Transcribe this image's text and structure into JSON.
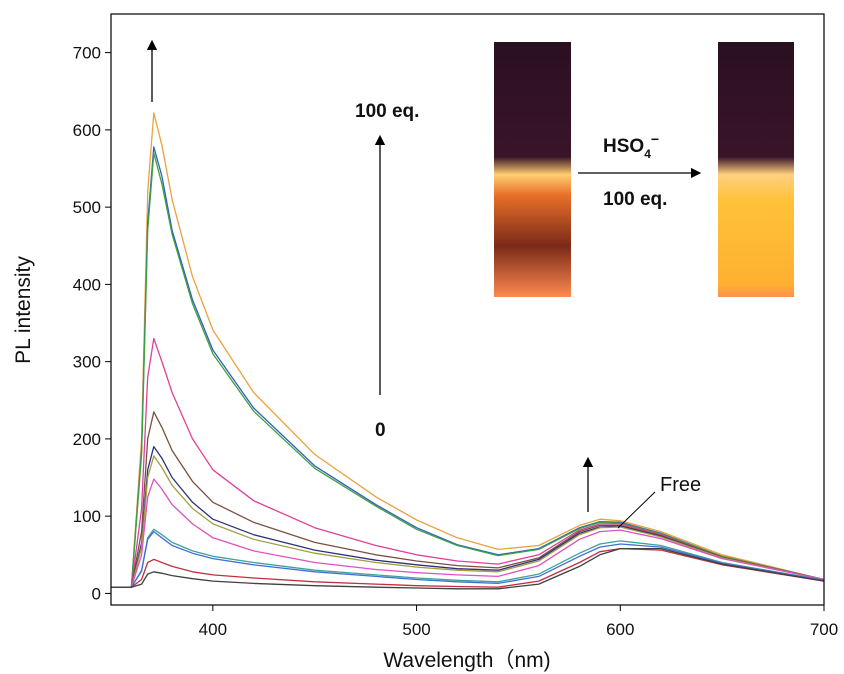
{
  "chart_data": {
    "type": "line",
    "xlabel": "Wavelength（nm)",
    "ylabel": "PL intensity",
    "xlim": [
      350,
      700
    ],
    "ylim": [
      -15,
      750
    ],
    "xticks": [
      400,
      500,
      600,
      700
    ],
    "yticks": [
      0,
      100,
      200,
      300,
      400,
      500,
      600,
      700
    ],
    "annotations": {
      "top": "100 eq.",
      "bottom": "0",
      "reagent": "HSO",
      "reagent_sub": "4",
      "reagent_sup": "−",
      "reagent_amount": "100 eq.",
      "free": "Free"
    },
    "x": [
      350,
      360,
      365,
      368,
      371,
      375,
      380,
      390,
      400,
      420,
      450,
      480,
      500,
      520,
      540,
      560,
      580,
      590,
      600,
      620,
      650,
      700
    ],
    "series": [
      {
        "color": "#e8a33d",
        "values": [
          8,
          8,
          200,
          520,
          622,
          580,
          510,
          410,
          341,
          260,
          180,
          125,
          95,
          72,
          57,
          62,
          88,
          96,
          94,
          80,
          50,
          18
        ]
      },
      {
        "color": "#3060c0",
        "values": [
          8,
          8,
          185,
          480,
          578,
          540,
          470,
          380,
          315,
          240,
          165,
          115,
          85,
          63,
          50,
          58,
          85,
          93,
          92,
          78,
          48,
          18
        ]
      },
      {
        "color": "#40a040",
        "values": [
          8,
          8,
          180,
          470,
          570,
          530,
          465,
          375,
          310,
          236,
          162,
          113,
          83,
          62,
          49,
          57,
          84,
          92,
          91,
          77,
          48,
          18
        ]
      },
      {
        "color": "#e0409a",
        "values": [
          8,
          8,
          110,
          280,
          330,
          300,
          260,
          200,
          160,
          120,
          85,
          62,
          50,
          42,
          38,
          50,
          82,
          90,
          90,
          76,
          47,
          18
        ]
      },
      {
        "color": "#7a5040",
        "values": [
          8,
          8,
          80,
          200,
          235,
          215,
          185,
          145,
          118,
          92,
          66,
          50,
          42,
          36,
          33,
          46,
          80,
          88,
          88,
          75,
          47,
          18
        ]
      },
      {
        "color": "#303080",
        "values": [
          8,
          8,
          65,
          160,
          190,
          175,
          150,
          118,
          96,
          76,
          56,
          43,
          37,
          32,
          30,
          44,
          78,
          86,
          87,
          74,
          46,
          18
        ]
      },
      {
        "color": "#a0a040",
        "values": [
          8,
          8,
          60,
          150,
          178,
          163,
          140,
          110,
          90,
          70,
          52,
          40,
          34,
          30,
          28,
          42,
          76,
          85,
          86,
          73,
          46,
          18
        ]
      },
      {
        "color": "#e050c0",
        "values": [
          8,
          8,
          50,
          125,
          148,
          135,
          115,
          90,
          72,
          55,
          40,
          31,
          27,
          24,
          22,
          36,
          70,
          80,
          82,
          71,
          45,
          18
        ]
      },
      {
        "color": "#40a0a0",
        "values": [
          8,
          8,
          30,
          72,
          83,
          76,
          66,
          55,
          48,
          40,
          30,
          24,
          20,
          17,
          15,
          25,
          52,
          64,
          68,
          62,
          40,
          17
        ]
      },
      {
        "color": "#4070d0",
        "values": [
          8,
          8,
          29,
          70,
          80,
          72,
          62,
          52,
          45,
          37,
          28,
          22,
          18,
          15,
          13,
          22,
          48,
          60,
          64,
          60,
          39,
          17
        ]
      },
      {
        "color": "#c03040",
        "values": [
          8,
          8,
          18,
          40,
          44,
          40,
          35,
          28,
          24,
          20,
          15,
          12,
          10,
          9,
          8,
          16,
          40,
          54,
          58,
          56,
          37,
          16
        ]
      },
      {
        "color": "#404040",
        "values": [
          8,
          8,
          12,
          25,
          28,
          26,
          23,
          19,
          16,
          13,
          10,
          8,
          7,
          6,
          6,
          12,
          35,
          50,
          58,
          58,
          38,
          16
        ]
      }
    ]
  }
}
